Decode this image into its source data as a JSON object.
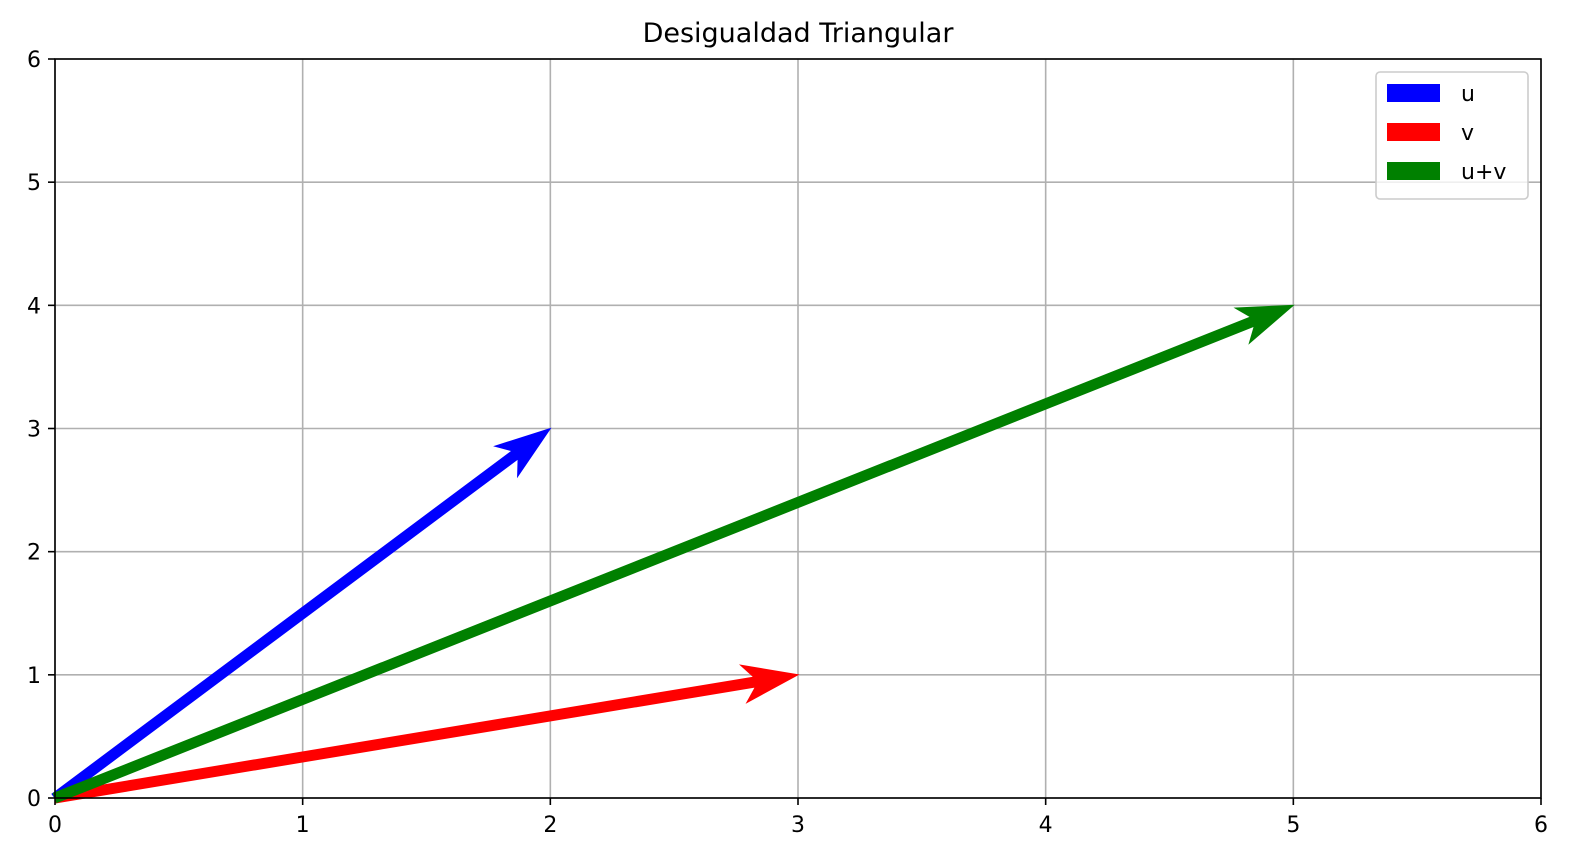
{
  "chart_data": {
    "type": "quiver",
    "title": "Desigualdad Triangular",
    "xlabel": "",
    "ylabel": "",
    "xlim": [
      0,
      6
    ],
    "ylim": [
      0,
      6
    ],
    "xticks": [
      "0",
      "1",
      "2",
      "3",
      "4",
      "5",
      "6"
    ],
    "yticks": [
      "0",
      "1",
      "2",
      "3",
      "4",
      "5",
      "6"
    ],
    "grid": true,
    "legend_position": "top-right",
    "series": [
      {
        "name": "u",
        "color": "#0000ff",
        "origin": [
          0,
          0
        ],
        "vector": [
          2,
          3
        ]
      },
      {
        "name": "v",
        "color": "#ff0000",
        "origin": [
          0,
          0
        ],
        "vector": [
          3,
          1
        ]
      },
      {
        "name": "u+v",
        "color": "#008000",
        "origin": [
          0,
          0
        ],
        "vector": [
          5,
          4
        ]
      }
    ]
  }
}
